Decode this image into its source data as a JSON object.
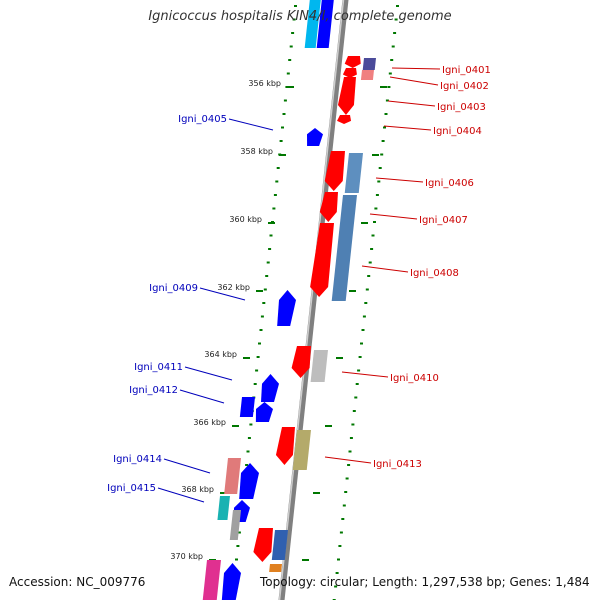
{
  "title": "Ignicoccus hospitalis KIN4/I, complete genome",
  "footer": {
    "accession": "Accession: NC_009776",
    "summary": "Topology: circular; Length: 1,297,538 bp; Genes: 1,484"
  },
  "colors": {
    "forward_label": "#cc0000",
    "reverse_label": "#0000bb",
    "forward_gene": "#ff0000",
    "reverse_gene": "#0000ff",
    "backbone": "#808080",
    "tick": "#007700"
  },
  "scale_labels": [
    "356 kbp",
    "358 kbp",
    "360 kbp",
    "362 kbp",
    "364 kbp",
    "366 kbp",
    "368 kbp",
    "370 kbp"
  ],
  "forward_genes": [
    "Igni_0401",
    "Igni_0402",
    "Igni_0403",
    "Igni_0404",
    "Igni_0406",
    "Igni_0407",
    "Igni_0408",
    "Igni_0410",
    "Igni_0413"
  ],
  "reverse_genes": [
    "Igni_0405",
    "Igni_0409",
    "Igni_0411",
    "Igni_0412",
    "Igni_0414",
    "Igni_0415"
  ]
}
